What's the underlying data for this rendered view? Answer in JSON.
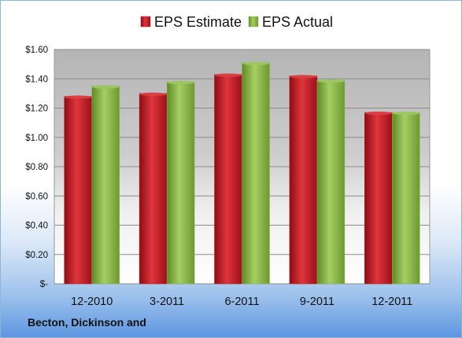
{
  "footer_label": "Becton, Dickinson and",
  "chart_data": {
    "type": "bar",
    "categories": [
      "12-2010",
      "3-2011",
      "6-2011",
      "9-2011",
      "12-2011"
    ],
    "series": [
      {
        "name": "EPS Estimate",
        "values": [
          1.28,
          1.3,
          1.43,
          1.42,
          1.17
        ],
        "color": "#c0151f"
      },
      {
        "name": "EPS Actual",
        "values": [
          1.35,
          1.38,
          1.51,
          1.39,
          1.17
        ],
        "color": "#8db84a"
      }
    ],
    "ylim": [
      0,
      1.6
    ],
    "yticks": [
      0,
      0.2,
      0.4,
      0.6,
      0.8,
      1.0,
      1.2,
      1.4,
      1.6
    ],
    "ytick_labels": [
      "$-",
      "$0.20",
      "$0.40",
      "$0.60",
      "$0.80",
      "$1.00",
      "$1.20",
      "$1.40",
      "$1.60"
    ],
    "grid": true,
    "legend": "top-center"
  }
}
